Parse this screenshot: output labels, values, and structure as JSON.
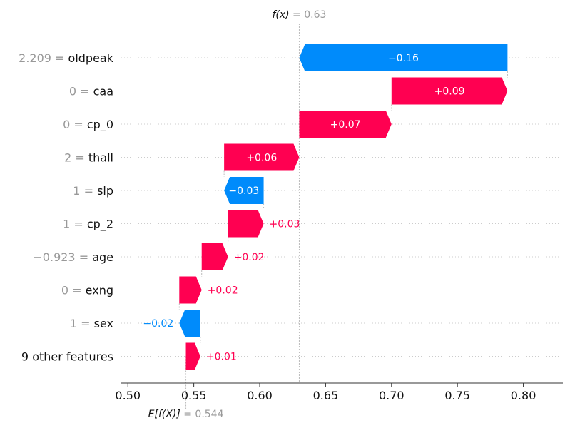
{
  "chart_data": {
    "type": "waterfall",
    "base_value": 0.544,
    "output_value": 0.63,
    "top_annotation": {
      "prefix": "f(x)",
      "equals": " = 0.63"
    },
    "bottom_annotation": {
      "prefix": "E[f(X)]",
      "equals": " = 0.544"
    },
    "xlim": [
      0.495,
      0.83
    ],
    "xticks": [
      0.5,
      0.55,
      0.6,
      0.65,
      0.7,
      0.75,
      0.8
    ],
    "xtick_labels": [
      "0.50",
      "0.55",
      "0.60",
      "0.65",
      "0.70",
      "0.75",
      "0.80"
    ],
    "features": [
      {
        "value_text": "2.209 = ",
        "name": "oldpeak",
        "start": 0.788,
        "end": 0.63,
        "label": "−0.16",
        "label_inside": true
      },
      {
        "value_text": "0 = ",
        "name": "caa",
        "start": 0.7,
        "end": 0.788,
        "label": "+0.09",
        "label_inside": true
      },
      {
        "value_text": "0 = ",
        "name": "cp_0",
        "start": 0.63,
        "end": 0.7,
        "label": "+0.07",
        "label_inside": true
      },
      {
        "value_text": "2 = ",
        "name": "thall",
        "start": 0.573,
        "end": 0.63,
        "label": "+0.06",
        "label_inside": true
      },
      {
        "value_text": "1 = ",
        "name": "slp",
        "start": 0.603,
        "end": 0.573,
        "label": "−0.03",
        "label_inside": true
      },
      {
        "value_text": "1 = ",
        "name": "cp_2",
        "start": 0.576,
        "end": 0.603,
        "label": "+0.03",
        "label_inside": false
      },
      {
        "value_text": "−0.923 = ",
        "name": "age",
        "start": 0.556,
        "end": 0.576,
        "label": "+0.02",
        "label_inside": false
      },
      {
        "value_text": "0 = ",
        "name": "exng",
        "start": 0.539,
        "end": 0.556,
        "label": "+0.02",
        "label_inside": false
      },
      {
        "value_text": "1 = ",
        "name": "sex",
        "start": 0.555,
        "end": 0.539,
        "label": "−0.02",
        "label_inside": false
      },
      {
        "value_text": "",
        "name": "9 other features",
        "start": 0.544,
        "end": 0.555,
        "label": "+0.01",
        "label_inside": false
      }
    ],
    "colors": {
      "positive": "#ff0051",
      "negative": "#008bfb",
      "muted": "#999999",
      "text": "#111111",
      "grid": "#cccccc"
    }
  }
}
